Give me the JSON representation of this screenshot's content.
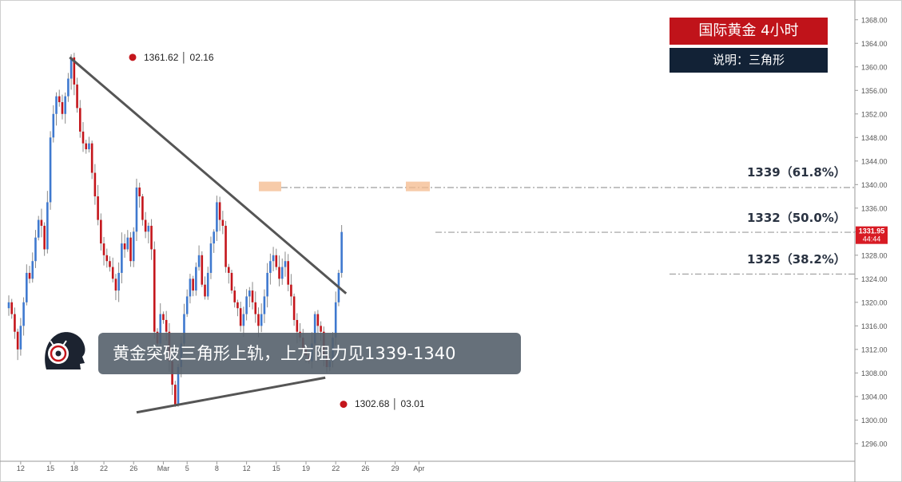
{
  "badges": {
    "title": "国际黄金 4小时",
    "subtitle": "说明：三角形"
  },
  "caption": "黄金突破三角形上轨，上方阻力见1339-1340",
  "points": {
    "high": "1361.62 │ 02.16",
    "low": "1302.68 │ 03.01"
  },
  "fib_levels": [
    {
      "label": "1339（61.8%）",
      "value": 1339.5
    },
    {
      "label": "1332（50.0%）",
      "value": 1331.9
    },
    {
      "label": "1325（38.2%）",
      "value": 1324.8
    }
  ],
  "price_tag": {
    "price": "1331.95",
    "timer": "44:44",
    "color": "#d81b24"
  },
  "colors": {
    "up": "#3f79cf",
    "down": "#c4161c",
    "trendline": "#555555",
    "highlight": "#f4b98c"
  },
  "chart_data": {
    "type": "candlestick",
    "title": "",
    "y_ticks": [
      1296,
      1300,
      1304,
      1308,
      1312,
      1316,
      1320,
      1324,
      1328,
      1332,
      1336,
      1340,
      1344,
      1348,
      1352,
      1356,
      1360,
      1364,
      1368
    ],
    "ylim": [
      1293,
      1370
    ],
    "x_ticks": [
      {
        "label": "12",
        "i": 4
      },
      {
        "label": "15",
        "i": 14
      },
      {
        "label": "18",
        "i": 22
      },
      {
        "label": "22",
        "i": 32
      },
      {
        "label": "26",
        "i": 42
      },
      {
        "label": "Mar",
        "i": 52
      },
      {
        "label": "5",
        "i": 60
      },
      {
        "label": "8",
        "i": 70
      },
      {
        "label": "12",
        "i": 80
      },
      {
        "label": "15",
        "i": 90
      },
      {
        "label": "19",
        "i": 100
      },
      {
        "label": "22",
        "i": 110
      },
      {
        "label": "26",
        "i": 120
      },
      {
        "label": "29",
        "i": 130
      },
      {
        "label": "Apr",
        "i": 138
      }
    ],
    "close": [
      1320,
      1318,
      1315,
      1312,
      1316,
      1320,
      1325,
      1324,
      1327,
      1331,
      1334,
      1333,
      1329,
      1337,
      1348,
      1352,
      1355,
      1354,
      1352,
      1355,
      1358,
      1361.6,
      1357,
      1353,
      1349,
      1347,
      1346,
      1347,
      1342,
      1338,
      1334,
      1330,
      1328,
      1327,
      1326,
      1324,
      1322,
      1325,
      1330,
      1329,
      1331,
      1327,
      1332,
      1339.5,
      1338,
      1334,
      1332,
      1333,
      1329,
      1315,
      1313,
      1318,
      1317,
      1315,
      1310,
      1306,
      1302.7,
      1309,
      1313,
      1318,
      1321,
      1324,
      1322,
      1326,
      1328,
      1323,
      1321,
      1325,
      1330,
      1332,
      1337,
      1334,
      1333,
      1326,
      1325,
      1322,
      1320,
      1319,
      1316,
      1318,
      1321,
      1322,
      1320,
      1318,
      1316,
      1318,
      1321,
      1325,
      1327,
      1328,
      1326,
      1324,
      1326,
      1327,
      1323,
      1321,
      1317,
      1315,
      1314,
      1312,
      1311,
      1310,
      1313,
      1318,
      1316,
      1315,
      1311,
      1309,
      1310,
      1314,
      1320,
      1325,
      1331.95
    ],
    "trendlines": [
      {
        "name": "upper",
        "from": {
          "i": 20.5,
          "y": 1361.62
        },
        "to": {
          "i": 113.5,
          "y": 1321.5
        }
      },
      {
        "name": "lower",
        "from": {
          "i": 43,
          "y": 1301.3
        },
        "to": {
          "i": 106.5,
          "y": 1307.2
        }
      }
    ]
  }
}
